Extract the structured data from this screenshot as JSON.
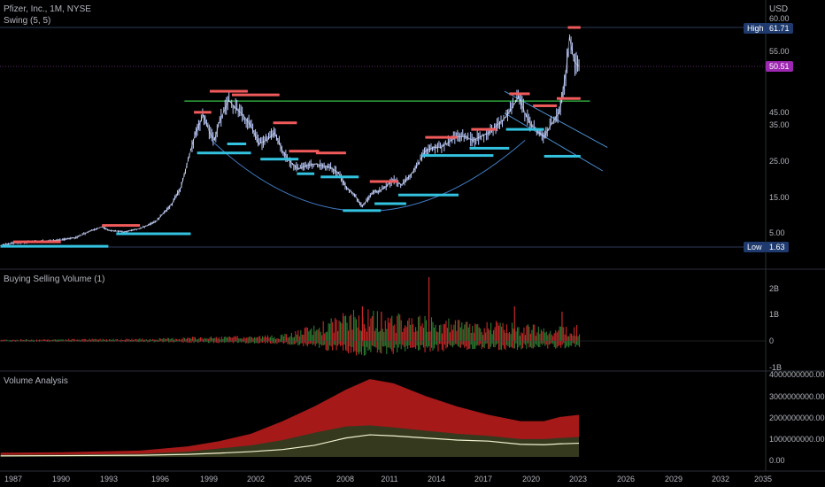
{
  "symbol": {
    "title": "Pfizer, Inc., 1M, NYSE",
    "indicator": "Swing (5, 5)",
    "currency": "USD"
  },
  "panes": {
    "volume_title": "Buying Selling Volume (1)",
    "analysis_title": "Volume Analysis"
  },
  "colors": {
    "background": "#000000",
    "bull": "#b8c9ff",
    "swing_high": "#f05a5a",
    "swing_low": "#33c2df",
    "neckline": "#36c447",
    "cup": "#3f7cc4",
    "channel": "#4a8fd0",
    "buy_vol": "#2e7d32",
    "sell_vol": "#c62828",
    "analysis_fill": "#b71c1c",
    "analysis_mid": "#2e3b1f",
    "analysis_line": "#f3f3d1",
    "price_tag": "#9c27b0",
    "high_tag": "#1e3a6e",
    "low_tag": "#1e3a6e"
  },
  "price_scale": {
    "labels": [
      "60.00",
      "55.00",
      "45.00",
      "35.00",
      "25.00",
      "15.00",
      "5.00"
    ]
  },
  "markers": {
    "high_label": "High",
    "high_value": "61.71",
    "low_label": "Low",
    "low_value": "1.63",
    "current": "50.51"
  },
  "volume_scale": {
    "labels": [
      "2B",
      "1B",
      "0",
      "-1B"
    ]
  },
  "analysis_scale": {
    "labels": [
      "4000000000.00",
      "3000000000.00",
      "2000000000.00",
      "1000000000.00",
      "0.00"
    ]
  },
  "x_axis": {
    "labels": [
      "1987",
      "1990",
      "1993",
      "1996",
      "1999",
      "2002",
      "2005",
      "2008",
      "2011",
      "2014",
      "2017",
      "2020",
      "2023",
      "2026",
      "2029",
      "2032",
      "2035"
    ]
  },
  "chart_data": {
    "type": "line",
    "title": "Pfizer, Inc., 1M, NYSE",
    "xlabel": "",
    "ylabel": "USD",
    "x_range": [
      1986,
      2035.5
    ],
    "ylim": [
      0,
      63
    ],
    "price": {
      "x": [
        1986.2,
        1987,
        1988,
        1989,
        1990,
        1991,
        1992,
        1992.6,
        1993,
        1994,
        1995,
        1996,
        1997,
        1997.6,
        1998,
        1998.5,
        1999,
        1999.4,
        1999.7,
        2000,
        2000.6,
        2001,
        2001.5,
        2002,
        2002.5,
        2003,
        2003.5,
        2004,
        2004.5,
        2005,
        2005.5,
        2006,
        2006.5,
        2007,
        2007.5,
        2008,
        2008.5,
        2009,
        2009.3,
        2009.8,
        2010,
        2010.5,
        2011,
        2011.5,
        2012,
        2012.5,
        2013,
        2013.5,
        2014,
        2014.5,
        2015,
        2015.5,
        2016,
        2016.5,
        2017,
        2017.5,
        2018,
        2018.5,
        2018.9,
        2019.3,
        2019.7,
        2020.1,
        2020.5,
        2020.9,
        2021.2,
        2021.5,
        2021.9,
        2022.1,
        2022.4,
        2022.7
      ],
      "y": [
        2.0,
        2.5,
        2.8,
        3.0,
        3.2,
        3.8,
        5.5,
        6.5,
        5.5,
        5.0,
        6.0,
        8.0,
        13.0,
        18.0,
        25.0,
        33.0,
        38.0,
        33.0,
        31.0,
        36.0,
        42.0,
        40.0,
        38.0,
        35.0,
        30.0,
        31.0,
        33.0,
        28.0,
        25.0,
        23.0,
        24.0,
        24.5,
        24.0,
        23.5,
        22.0,
        18.0,
        16.0,
        12.5,
        14.0,
        17.0,
        16.5,
        18.0,
        20.0,
        18.5,
        21.0,
        24.0,
        28.0,
        29.0,
        29.0,
        30.5,
        32.0,
        32.0,
        31.0,
        32.0,
        33.0,
        35.0,
        37.0,
        40.0,
        43.0,
        38.5,
        35.0,
        33.5,
        32.0,
        35.0,
        37.0,
        39.0,
        50.0,
        59.0,
        52.0,
        50.5
      ]
    },
    "swing_highs": [
      {
        "x0": 1987.0,
        "x1": 1990.0,
        "price": 2.8
      },
      {
        "x0": 1992.6,
        "x1": 1995.0,
        "price": 6.9
      },
      {
        "x0": 1998.4,
        "x1": 1999.5,
        "price": 38.7
      },
      {
        "x0": 1999.4,
        "x1": 2001.8,
        "price": 44.5
      },
      {
        "x0": 2000.8,
        "x1": 2003.8,
        "price": 43.5
      },
      {
        "x0": 2003.4,
        "x1": 2004.9,
        "price": 35.8
      },
      {
        "x0": 2004.4,
        "x1": 2006.3,
        "price": 28.0
      },
      {
        "x0": 2006.1,
        "x1": 2008.0,
        "price": 27.5
      },
      {
        "x0": 2009.5,
        "x1": 2011.3,
        "price": 19.5
      },
      {
        "x0": 2013.0,
        "x1": 2015.0,
        "price": 31.8
      },
      {
        "x0": 2015.9,
        "x1": 2017.5,
        "price": 34.0
      },
      {
        "x0": 2018.3,
        "x1": 2019.6,
        "price": 43.8
      },
      {
        "x0": 2019.8,
        "x1": 2021.3,
        "price": 40.5
      },
      {
        "x0": 2021.3,
        "x1": 2022.8,
        "price": 42.5
      },
      {
        "x0": 2022.0,
        "x1": 2022.8,
        "price": 61.7
      }
    ],
    "swing_lows": [
      {
        "x0": 1986.2,
        "x1": 1993.0,
        "price": 1.8
      },
      {
        "x0": 1993.5,
        "x1": 1998.2,
        "price": 4.6
      },
      {
        "x0": 1998.6,
        "x1": 2002.0,
        "price": 27.5
      },
      {
        "x0": 2000.5,
        "x1": 2001.7,
        "price": 30.0
      },
      {
        "x0": 2002.6,
        "x1": 2005.0,
        "price": 25.8
      },
      {
        "x0": 2004.9,
        "x1": 2006.0,
        "price": 21.7
      },
      {
        "x0": 2006.4,
        "x1": 2008.8,
        "price": 20.8
      },
      {
        "x0": 2007.8,
        "x1": 2010.2,
        "price": 11.2
      },
      {
        "x0": 2009.8,
        "x1": 2011.8,
        "price": 13.2
      },
      {
        "x0": 2011.3,
        "x1": 2015.1,
        "price": 15.7
      },
      {
        "x0": 2012.8,
        "x1": 2017.3,
        "price": 26.8
      },
      {
        "x0": 2015.8,
        "x1": 2018.3,
        "price": 28.8
      },
      {
        "x0": 2018.1,
        "x1": 2020.5,
        "price": 34.0
      },
      {
        "x0": 2020.5,
        "x1": 2022.8,
        "price": 26.6
      }
    ],
    "neckline": {
      "x0": 1997.8,
      "x1": 2023.4,
      "price": 41.8
    },
    "cup": {
      "x0": 1999.5,
      "x1": 2019.3,
      "bottom_x": 2009.0,
      "top_price": 31.0,
      "bottom_price": 11.0
    },
    "channel": [
      {
        "x0": 2018.0,
        "y0": 44.5,
        "x1": 2024.5,
        "y1": 29.0
      },
      {
        "x0": 2018.0,
        "y0": 38.5,
        "x1": 2024.2,
        "y1": 22.5
      }
    ],
    "volume_pane": {
      "type": "bar",
      "ylim": [
        -1.2,
        2.6
      ],
      "units": "billions",
      "envelope_x": [
        1986.2,
        1996,
        1998,
        2001,
        2004,
        2006,
        2008,
        2009,
        2010,
        2012,
        2014,
        2016,
        2018,
        2020,
        2022.7
      ],
      "envelope_y": [
        0.05,
        0.08,
        0.12,
        0.15,
        0.2,
        0.5,
        0.9,
        1.0,
        0.9,
        0.8,
        0.7,
        0.6,
        0.6,
        0.5,
        0.5
      ],
      "spikes": [
        {
          "x": 2009.0,
          "y": 1.3
        },
        {
          "x": 2013.2,
          "y": 2.4
        },
        {
          "x": 2018.6,
          "y": 1.3
        },
        {
          "x": 2021.6,
          "y": 1.1
        },
        {
          "x": 2010.2,
          "y": 1.1
        }
      ]
    },
    "analysis_pane": {
      "type": "area",
      "ylim": [
        -200000000,
        4300000000
      ],
      "x": [
        1986.2,
        1990,
        1995,
        1998,
        2000,
        2002,
        2004,
        2006,
        2008,
        2009.5,
        2011,
        2013,
        2015,
        2017,
        2019,
        2020.5,
        2021.5,
        2022.7
      ],
      "upper": [
        200000000,
        220000000,
        300000000,
        500000000,
        750000000,
        1100000000,
        1700000000,
        2400000000,
        3200000000,
        3700000000,
        3500000000,
        2900000000,
        2400000000,
        2000000000,
        1700000000,
        1700000000,
        1900000000,
        2000000000
      ],
      "mid": [
        100000000,
        110000000,
        150000000,
        250000000,
        400000000,
        550000000,
        800000000,
        1150000000,
        1450000000,
        1500000000,
        1400000000,
        1250000000,
        1100000000,
        1000000000,
        850000000,
        850000000,
        900000000,
        950000000
      ],
      "line": [
        50000000,
        60000000,
        80000000,
        120000000,
        180000000,
        250000000,
        350000000,
        550000000,
        900000000,
        1050000000,
        1000000000,
        900000000,
        800000000,
        750000000,
        600000000,
        580000000,
        620000000,
        650000000
      ]
    }
  }
}
